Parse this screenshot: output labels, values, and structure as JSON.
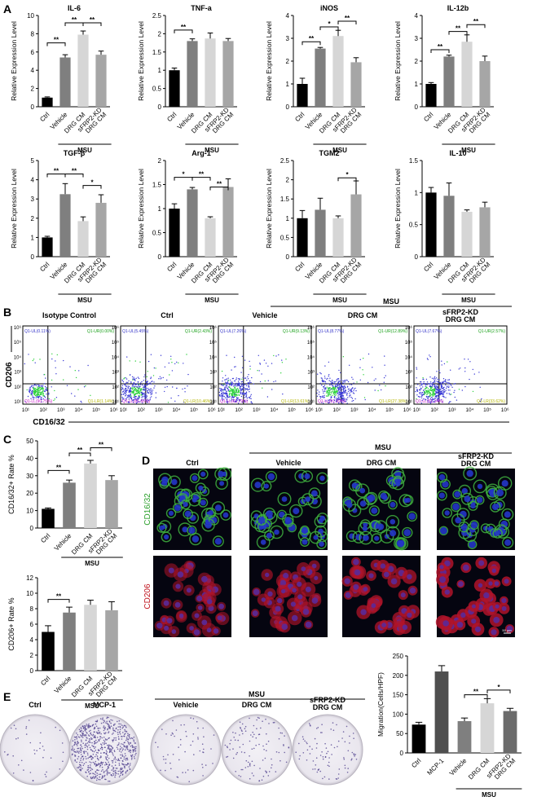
{
  "panels": {
    "A": "A",
    "B": "B",
    "C": "C",
    "D": "D",
    "E": "E"
  },
  "groups": {
    "msu": "MSU"
  },
  "colors": {
    "ctrl": "#000000",
    "vehicle": "#7f7f7f",
    "drg": "#d6d6d6",
    "kd": "#a6a6a6",
    "mcp": "#4f4f4f",
    "kd_mig": "#6b6b6b"
  },
  "panel_a": {
    "ylabel": "Relative Expression Level",
    "categories": [
      "Ctrl",
      "Vehicle",
      "DRG CM",
      "sFRP2-KD DRG CM"
    ],
    "charts": [
      {
        "type": "bar",
        "title": "IL-6",
        "values": [
          1.0,
          5.4,
          7.9,
          5.7
        ],
        "errors": [
          0.08,
          0.3,
          0.4,
          0.4
        ],
        "ylim": [
          0,
          10
        ],
        "ticks": [
          0,
          2,
          4,
          6,
          8,
          10
        ],
        "sig": [
          {
            "from": 0,
            "to": 1,
            "label": "**",
            "level": 7.0
          },
          {
            "from": 1,
            "to": 2,
            "label": "**",
            "level": 9.2
          },
          {
            "from": 2,
            "to": 3,
            "label": "**",
            "level": 9.2
          }
        ]
      },
      {
        "type": "bar",
        "title": "TNF-a",
        "values": [
          1.0,
          1.8,
          1.87,
          1.8
        ],
        "errors": [
          0.06,
          0.06,
          0.15,
          0.07
        ],
        "ylim": [
          0,
          2.5
        ],
        "ticks": [
          0,
          0.5,
          1.0,
          1.5,
          2.0,
          2.5
        ],
        "sig": [
          {
            "from": 0,
            "to": 1,
            "label": "**",
            "level": 2.1
          }
        ]
      },
      {
        "type": "bar",
        "title": "iNOS",
        "values": [
          1.0,
          2.55,
          3.1,
          1.95
        ],
        "errors": [
          0.25,
          0.05,
          0.25,
          0.2
        ],
        "ylim": [
          0,
          4
        ],
        "ticks": [
          0,
          1,
          2,
          3,
          4
        ],
        "sig": [
          {
            "from": 0,
            "to": 1,
            "label": "**",
            "level": 2.85
          },
          {
            "from": 1,
            "to": 2,
            "label": "*",
            "level": 3.5
          },
          {
            "from": 2,
            "to": 3,
            "label": "**",
            "level": 3.75
          }
        ]
      },
      {
        "type": "bar",
        "title": "IL-12b",
        "values": [
          1.0,
          2.2,
          2.85,
          2.0
        ],
        "errors": [
          0.06,
          0.06,
          0.3,
          0.22
        ],
        "ylim": [
          0,
          4
        ],
        "ticks": [
          0,
          1,
          2,
          3,
          4
        ],
        "sig": [
          {
            "from": 0,
            "to": 1,
            "label": "**",
            "level": 2.5
          },
          {
            "from": 1,
            "to": 2,
            "label": "**",
            "level": 3.3
          },
          {
            "from": 2,
            "to": 3,
            "label": "**",
            "level": 3.6
          }
        ]
      },
      {
        "type": "bar",
        "title": "TGF-β",
        "values": [
          1.0,
          3.25,
          1.85,
          2.8
        ],
        "errors": [
          0.06,
          0.55,
          0.22,
          0.42
        ],
        "ylim": [
          0,
          5
        ],
        "ticks": [
          0,
          1,
          2,
          3,
          4,
          5
        ],
        "sig": [
          {
            "from": 0,
            "to": 1,
            "label": "**",
            "level": 4.3
          },
          {
            "from": 1,
            "to": 2,
            "label": "**",
            "level": 4.3
          },
          {
            "from": 2,
            "to": 3,
            "label": "*",
            "level": 3.7
          }
        ]
      },
      {
        "type": "bar",
        "title": "Arg-1",
        "values": [
          1.0,
          1.4,
          0.8,
          1.45
        ],
        "errors": [
          0.1,
          0.04,
          0.03,
          0.17
        ],
        "ylim": [
          0,
          2.0
        ],
        "ticks": [
          0,
          0.5,
          1.0,
          1.5,
          2.0
        ],
        "sig": [
          {
            "from": 0,
            "to": 1,
            "label": "*",
            "level": 1.65
          },
          {
            "from": 1,
            "to": 2,
            "label": "**",
            "level": 1.65
          },
          {
            "from": 2,
            "to": 3,
            "label": "**",
            "level": 1.45
          }
        ]
      },
      {
        "type": "bar",
        "title": "TGM2",
        "values": [
          1.0,
          1.22,
          1.0,
          1.62
        ],
        "errors": [
          0.2,
          0.3,
          0.06,
          0.35
        ],
        "ylim": [
          0,
          2.5
        ],
        "ticks": [
          0,
          0.5,
          1.0,
          1.5,
          2.0,
          2.5
        ],
        "sig": [
          {
            "from": 2,
            "to": 3,
            "label": "*",
            "level": 2.05
          }
        ]
      },
      {
        "type": "bar",
        "title": "IL-10",
        "values": [
          1.0,
          0.95,
          0.7,
          0.77
        ],
        "errors": [
          0.08,
          0.2,
          0.03,
          0.08
        ],
        "ylim": [
          0,
          1.5
        ],
        "ticks": [
          0,
          0.5,
          1.0,
          1.5
        ],
        "sig": []
      }
    ]
  },
  "panel_b": {
    "yaxis": "CD206",
    "xaxis": "CD16/32",
    "x_ticks": [
      "10¹",
      "10²",
      "10³",
      "10⁴",
      "10⁵",
      "10⁶"
    ],
    "y_ticks": [
      "10¹",
      "10²",
      "10³",
      "10⁴",
      "10⁵",
      "10⁶"
    ],
    "plots": [
      {
        "title": "Isotype Control",
        "ul": "Q1-UL(0.11%)",
        "ur": "Q1-UR(0.00%)",
        "ll": "Q1-LL(90.75%)",
        "lr": "Q1-LR(1.14%)"
      },
      {
        "title": "Ctrl",
        "ul": "Q1-UL(5.45%)",
        "ur": "Q1-UR(2.43%)",
        "ll": "Q1-LL(81.66%)",
        "lr": "Q1-LR(10.46%)"
      },
      {
        "title": "Vehicle",
        "ul": "Q1-UL(7.26%)",
        "ur": "Q1-UR(9.13%)",
        "ll": "Q1-LL(61.79%)",
        "lr": "Q1-LR(13.61%)"
      },
      {
        "title": "DRG CM",
        "ul": "Q1-UL(8.77%)",
        "ur": "Q1-UR(12.89%)",
        "ll": "Q1-LL(51.69%)",
        "lr": "Q1-LR(27.38%)"
      },
      {
        "title": "sFRP2-KD\nDRG CM",
        "ul": "Q1-UL(7.67%)",
        "ur": "Q1-UR(2.57%)",
        "ll": "Q1-LL(51.14%)",
        "lr": "Q1-LR(33.62%)"
      }
    ]
  },
  "panel_c": {
    "categories": [
      "Ctrl",
      "Vehicle",
      "DRG CM",
      "sFRP2-KD DRG CM"
    ],
    "charts": [
      {
        "type": "bar",
        "ylabel": "CD16/32+ Rate %",
        "values": [
          11,
          26,
          37,
          27.5
        ],
        "errors": [
          0.5,
          1.5,
          1.8,
          2.5
        ],
        "ylim": [
          0,
          50
        ],
        "ticks": [
          0,
          10,
          20,
          30,
          40,
          50
        ],
        "sig": [
          {
            "from": 0,
            "to": 1,
            "label": "**",
            "level": 33
          },
          {
            "from": 1,
            "to": 2,
            "label": "**",
            "level": 43
          },
          {
            "from": 2,
            "to": 3,
            "label": "**",
            "level": 46
          }
        ]
      },
      {
        "type": "bar",
        "ylabel": "CD206+ Rate %",
        "values": [
          5,
          7.5,
          8.5,
          7.8
        ],
        "errors": [
          0.8,
          0.7,
          0.6,
          1.1
        ],
        "ylim": [
          0,
          12
        ],
        "ticks": [
          0,
          2,
          4,
          6,
          8,
          10,
          12
        ],
        "sig": [
          {
            "from": 0,
            "to": 1,
            "label": "**",
            "level": 9.2
          }
        ]
      }
    ]
  },
  "panel_d": {
    "columns": [
      "Ctrl",
      "Vehicle",
      "DRG CM",
      "sFRP2-KD\nDRG CM"
    ],
    "rows": [
      {
        "label": "CD16/32",
        "color": "#2ca02c"
      },
      {
        "label": "CD206",
        "color": "#c0141e"
      }
    ],
    "scale": "50 µm"
  },
  "panel_e": {
    "images": [
      "Ctrl",
      "MCP-1",
      "Vehicle",
      "DRG CM",
      "sFRP2-KD\nDRG CM"
    ],
    "chart": {
      "type": "bar",
      "ylabel": "Migration(Cells/HPF)",
      "categories": [
        "Ctrl",
        "MCP-1",
        "Vehicle",
        "DRG CM",
        "sFRP2-KD DRG CM"
      ],
      "values": [
        73,
        210,
        82,
        128,
        108
      ],
      "errors": [
        6,
        15,
        8,
        12,
        7
      ],
      "ylim": [
        0,
        250
      ],
      "ticks": [
        0,
        50,
        100,
        150,
        200,
        250
      ],
      "sig": [
        {
          "from": 2,
          "to": 3,
          "label": "**",
          "level": 150
        },
        {
          "from": 3,
          "to": 4,
          "label": "*",
          "level": 162
        }
      ]
    }
  }
}
